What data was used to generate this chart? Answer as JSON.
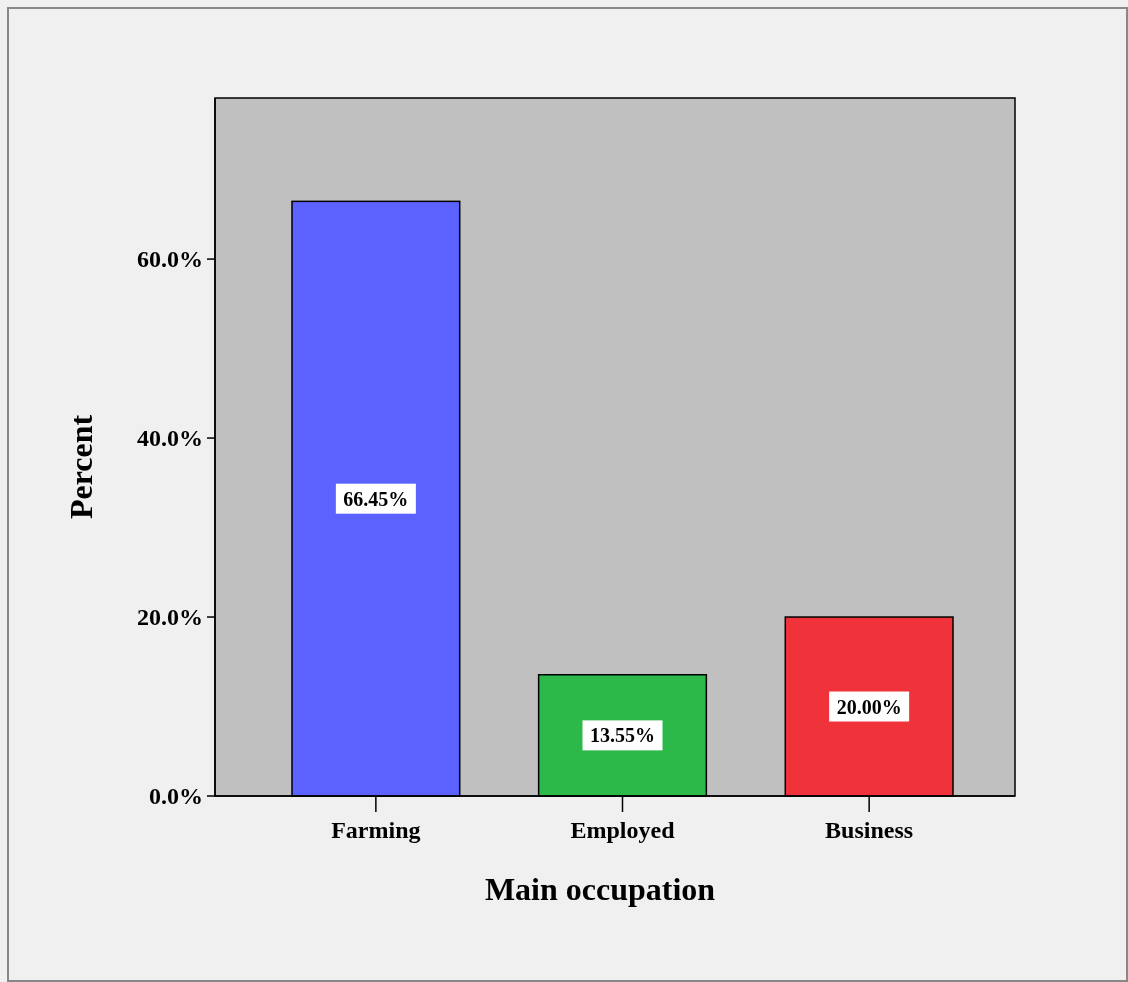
{
  "chart_data": {
    "type": "bar",
    "xlabel": "Main occupation",
    "ylabel": "Percent",
    "categories": [
      "Farming",
      "Employed",
      "Business"
    ],
    "values": [
      66.45,
      13.55,
      20.0
    ],
    "colors": [
      "#5b62ff",
      "#2db84a",
      "#f0323a"
    ],
    "value_labels": [
      "66.45%",
      "13.55%",
      "20.00%"
    ],
    "ylim": [
      0,
      78
    ],
    "yticks": [
      {
        "value": 0,
        "label": "0.0%"
      },
      {
        "value": 20,
        "label": "20.0%"
      },
      {
        "value": 40,
        "label": "40.0%"
      },
      {
        "value": 60,
        "label": "60.0%"
      }
    ],
    "grid": false
  }
}
